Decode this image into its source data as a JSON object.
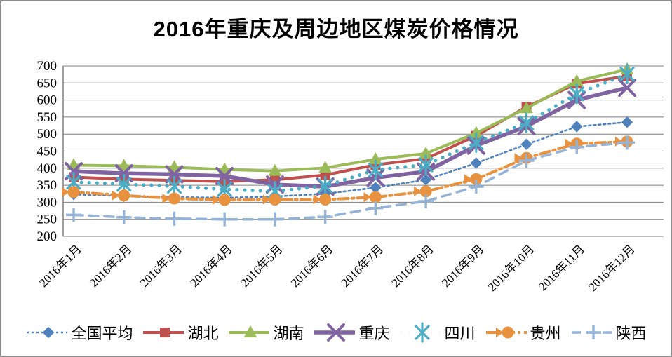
{
  "title": "2016年重庆及周边地区煤炭价格情况",
  "chart_data": {
    "type": "line",
    "title": "2016年重庆及周边地区煤炭价格情况",
    "categories": [
      "2016年1月",
      "2016年2月",
      "2016年3月",
      "2016年4月",
      "2016年5月",
      "2016年6月",
      "2016年7月",
      "2016年8月",
      "2016年9月",
      "2016年10月",
      "2016年11月",
      "2016年12月"
    ],
    "series": [
      {
        "id": "national-average",
        "name": "全国平均",
        "color": "#4F81BD",
        "marker": "diamond",
        "line_style": "dotted",
        "values": [
          323,
          318,
          315,
          313,
          317,
          325,
          343,
          366,
          415,
          470,
          522,
          535
        ]
      },
      {
        "id": "hubei",
        "name": "湖北",
        "color": "#C0504D",
        "marker": "square",
        "line_style": "solid",
        "values": [
          374,
          368,
          364,
          361,
          366,
          380,
          410,
          428,
          495,
          580,
          648,
          670
        ]
      },
      {
        "id": "hunan",
        "name": "湖南",
        "color": "#9BBB59",
        "marker": "triangle",
        "line_style": "solid",
        "values": [
          409,
          407,
          403,
          396,
          392,
          401,
          426,
          443,
          503,
          576,
          655,
          690
        ]
      },
      {
        "id": "chongqing",
        "name": "重庆",
        "color": "#8064A2",
        "marker": "xcross",
        "line_style": "solid",
        "values": [
          391,
          385,
          382,
          377,
          352,
          346,
          372,
          390,
          466,
          523,
          600,
          636
        ]
      },
      {
        "id": "sichuan",
        "name": "四川",
        "color": "#4BACC6",
        "marker": "asterisk",
        "line_style": "round-dot",
        "values": [
          359,
          353,
          347,
          338,
          332,
          348,
          395,
          410,
          475,
          533,
          618,
          676
        ]
      },
      {
        "id": "guizhou",
        "name": "贵州",
        "color": "#E8913E",
        "marker": "circle-arrow",
        "line_style": "dash-dot",
        "values": [
          330,
          320,
          311,
          307,
          308,
          308,
          315,
          332,
          368,
          430,
          472,
          478
        ]
      },
      {
        "id": "shaanxi",
        "name": "陕西",
        "color": "#95B3D7",
        "marker": "plus",
        "line_style": "dashed",
        "values": [
          263,
          256,
          252,
          250,
          250,
          257,
          283,
          303,
          346,
          422,
          462,
          475
        ]
      }
    ],
    "ylim": [
      200,
      700
    ],
    "ytick_step": 50,
    "yticks": [
      200,
      250,
      300,
      350,
      400,
      450,
      500,
      550,
      600,
      650,
      700
    ],
    "grid": "horizontal",
    "gridline_color": "#7f7f7f",
    "axis_color": "#7f7f7f",
    "legend_position": "bottom",
    "x_label_rotation": -45
  }
}
